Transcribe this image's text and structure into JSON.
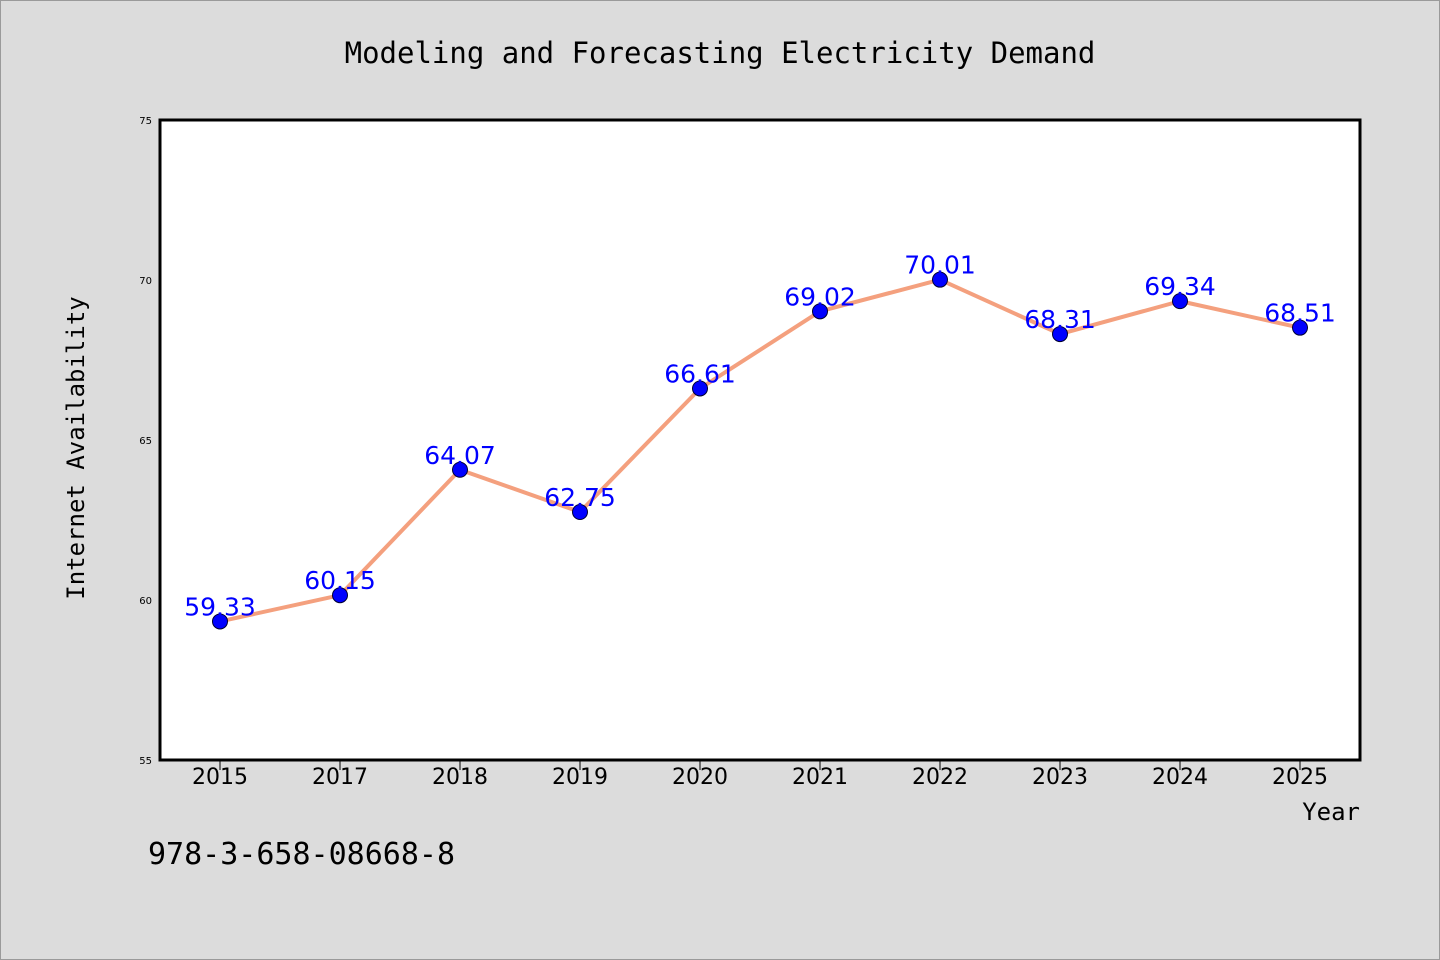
{
  "chart_data": {
    "type": "line",
    "title": "Modeling and Forecasting Electricity Demand",
    "xlabel": "Year",
    "ylabel": "Internet Availability",
    "categories": [
      "2015",
      "2017",
      "2018",
      "2019",
      "2020",
      "2021",
      "2022",
      "2023",
      "2024",
      "2025"
    ],
    "series": [
      {
        "values": [
          59.33,
          60.15,
          64.07,
          62.75,
          66.61,
          69.02,
          70.01,
          68.31,
          69.34,
          68.51
        ],
        "data_labels": [
          "59.33",
          "60.15",
          "64.07",
          "62.75",
          "66.61",
          "69.02",
          "70.01",
          "68.31",
          "69.34",
          "68.51"
        ],
        "line_color": "#f4a07e",
        "marker_color": "#0000ff"
      }
    ],
    "ylim": [
      55,
      75
    ],
    "yticks": [
      "55",
      "60",
      "65",
      "70",
      "75"
    ],
    "grid": false,
    "legend": "none"
  },
  "footer": {
    "isbn": "978-3-658-08668-8"
  }
}
